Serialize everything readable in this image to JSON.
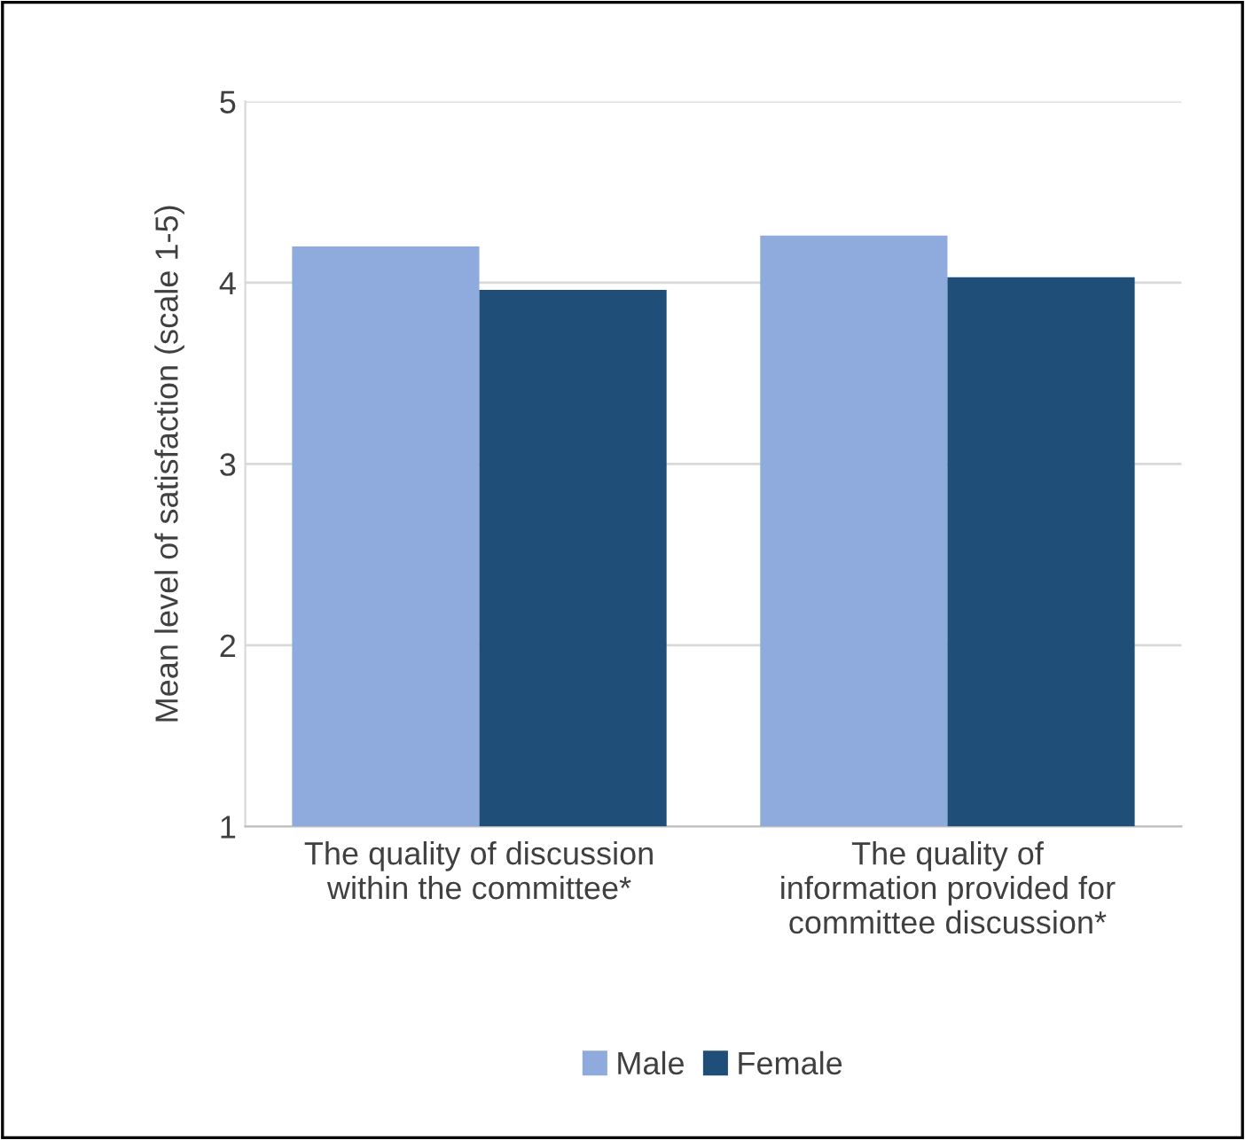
{
  "chart_data": {
    "type": "bar",
    "ylabel": "Mean level of satisfaction (scale 1-5)",
    "categories": [
      "The quality of discussion\nwithin the committee*",
      "The quality of\ninformation provided for\ncommittee discussion*"
    ],
    "series": [
      {
        "name": "Male",
        "color": "#8faadc",
        "values": [
          4.2,
          4.26
        ]
      },
      {
        "name": "Female",
        "color": "#1f4e79",
        "values": [
          3.96,
          4.03
        ]
      }
    ],
    "ylim": [
      1,
      5
    ],
    "yticks": [
      1,
      2,
      3,
      4,
      5
    ],
    "grid": "y",
    "legend": "bottom"
  }
}
